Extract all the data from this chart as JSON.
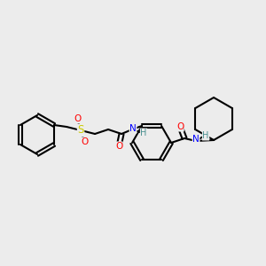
{
  "background_color": "#ececec",
  "bond_color": "#000000",
  "bond_width": 1.5,
  "atom_colors": {
    "O": "#ff0000",
    "N": "#0000ff",
    "S": "#cccc00",
    "H": "#4a9090",
    "C": "#000000"
  },
  "font_size": 7.5
}
